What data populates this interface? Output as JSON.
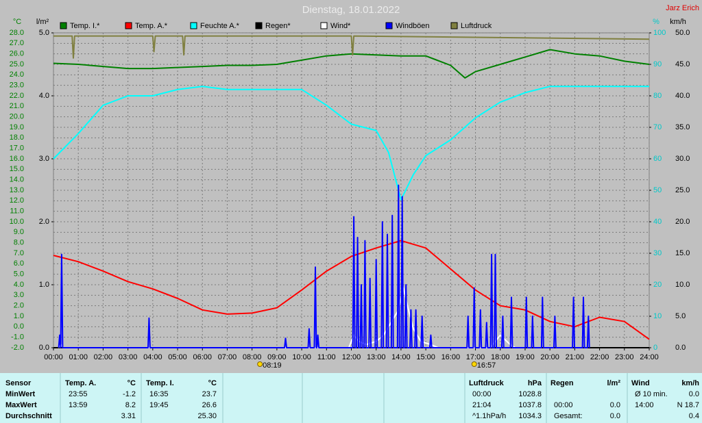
{
  "chart_data": {
    "type": "line",
    "title": "Dienstag, 18.01.2022",
    "author": "Jarz Erich",
    "grid": true,
    "legend": "top",
    "xlim": [
      0,
      24
    ],
    "xticks": [
      {
        "value": 0,
        "label": "00:00"
      },
      {
        "value": 1,
        "label": "01:00"
      },
      {
        "value": 2,
        "label": "02:00"
      },
      {
        "value": 3,
        "label": "03:00"
      },
      {
        "value": 4,
        "label": "04:00"
      },
      {
        "value": 5,
        "label": "05:00"
      },
      {
        "value": 6,
        "label": "06:00"
      },
      {
        "value": 7,
        "label": "07:00"
      },
      {
        "value": 8,
        "label": "08:00"
      },
      {
        "value": 9,
        "label": "09:00"
      },
      {
        "value": 10,
        "label": "10:00"
      },
      {
        "value": 11,
        "label": "11:00"
      },
      {
        "value": 12,
        "label": "12:00"
      },
      {
        "value": 13,
        "label": "13:00"
      },
      {
        "value": 14,
        "label": "14:00"
      },
      {
        "value": 15,
        "label": "15:00"
      },
      {
        "value": 16,
        "label": "16:00"
      },
      {
        "value": 17,
        "label": "17:00"
      },
      {
        "value": 18,
        "label": "18:00"
      },
      {
        "value": 19,
        "label": "19:00"
      },
      {
        "value": 20,
        "label": "20:00"
      },
      {
        "value": 21,
        "label": "21:00"
      },
      {
        "value": 22,
        "label": "22:00"
      },
      {
        "value": 23,
        "label": "23:00"
      },
      {
        "value": 24,
        "label": "24:00"
      }
    ],
    "sun": [
      {
        "value": 8.317,
        "label": "08:19"
      },
      {
        "value": 16.95,
        "label": "16:57"
      }
    ],
    "axes": [
      {
        "label": "°C",
        "side": "left",
        "color": "#008000",
        "lim": [
          -2,
          28
        ],
        "ticks": [
          {
            "value": -2,
            "label": "-2.0"
          },
          {
            "value": -1,
            "label": "-1.0"
          },
          {
            "value": 0,
            "label": "0.0"
          },
          {
            "value": 1,
            "label": "1.0"
          },
          {
            "value": 2,
            "label": "2.0"
          },
          {
            "value": 3,
            "label": "3.0"
          },
          {
            "value": 4,
            "label": "4.0"
          },
          {
            "value": 5,
            "label": "5.0"
          },
          {
            "value": 6,
            "label": "6.0"
          },
          {
            "value": 7,
            "label": "7.0"
          },
          {
            "value": 8,
            "label": "8.0"
          },
          {
            "value": 9,
            "label": "9.0"
          },
          {
            "value": 10,
            "label": "10.0"
          },
          {
            "value": 11,
            "label": "11.0"
          },
          {
            "value": 12,
            "label": "12.0"
          },
          {
            "value": 13,
            "label": "13.0"
          },
          {
            "value": 14,
            "label": "14.0"
          },
          {
            "value": 15,
            "label": "15.0"
          },
          {
            "value": 16,
            "label": "16.0"
          },
          {
            "value": 17,
            "label": "17.0"
          },
          {
            "value": 18,
            "label": "18.0"
          },
          {
            "value": 19,
            "label": "19.0"
          },
          {
            "value": 20,
            "label": "20.0"
          },
          {
            "value": 21,
            "label": "21.0"
          },
          {
            "value": 22,
            "label": "22.0"
          },
          {
            "value": 23,
            "label": "23.0"
          },
          {
            "value": 24,
            "label": "24.0"
          },
          {
            "value": 25,
            "label": "25.0"
          },
          {
            "value": 26,
            "label": "26.0"
          },
          {
            "value": 27,
            "label": "27.0"
          },
          {
            "value": 28,
            "label": "28.0"
          }
        ]
      },
      {
        "label": "l/m²",
        "side": "left",
        "color": "#000000",
        "lim": [
          0,
          5
        ],
        "ticks": [
          {
            "value": 0,
            "label": "0.0"
          },
          {
            "value": 1,
            "label": "1.0"
          },
          {
            "value": 2,
            "label": "2.0"
          },
          {
            "value": 3,
            "label": "3.0"
          },
          {
            "value": 4,
            "label": "4.0"
          },
          {
            "value": 5,
            "label": "5.0"
          }
        ]
      },
      {
        "label": "%",
        "side": "right",
        "color": "#00c8c8",
        "lim": [
          0,
          100
        ],
        "ticks": [
          0,
          10,
          20,
          30,
          40,
          50,
          60,
          70,
          80,
          90,
          100
        ]
      },
      {
        "label": "km/h",
        "side": "right",
        "color": "#000000",
        "lim": [
          0,
          50
        ],
        "ticks": [
          {
            "value": 0,
            "label": "0.0"
          },
          {
            "value": 5,
            "label": "5.0"
          },
          {
            "value": 10,
            "label": "10.0"
          },
          {
            "value": 15,
            "label": "15.0"
          },
          {
            "value": 20,
            "label": "20.0"
          },
          {
            "value": 25,
            "label": "25.0"
          },
          {
            "value": 30,
            "label": "30.0"
          },
          {
            "value": 35,
            "label": "35.0"
          },
          {
            "value": 40,
            "label": "40.0"
          },
          {
            "value": 45,
            "label": "45.0"
          },
          {
            "value": 50,
            "label": "50.0"
          }
        ]
      }
    ],
    "series": [
      {
        "name": "Temp. I.*",
        "color": "#008000",
        "axis": 0,
        "x": [
          0,
          1,
          2,
          3,
          4,
          5,
          6,
          7,
          8,
          9,
          10,
          11,
          12,
          13,
          14,
          15,
          16,
          16.58,
          17,
          18,
          19,
          20,
          21,
          22,
          23,
          24
        ],
        "values": [
          25.1,
          25.0,
          24.8,
          24.6,
          24.6,
          24.7,
          24.8,
          24.9,
          24.9,
          25.0,
          25.4,
          25.8,
          26.0,
          25.9,
          25.8,
          25.8,
          24.9,
          23.7,
          24.3,
          25.0,
          25.7,
          26.4,
          26.0,
          25.8,
          25.3,
          25.0
        ]
      },
      {
        "name": "Temp. A.*",
        "color": "#ff0000",
        "axis": 0,
        "x": [
          0,
          1,
          2,
          3,
          4,
          5,
          6,
          7,
          8,
          9,
          10,
          11,
          12,
          13,
          14,
          15,
          16,
          17,
          18,
          19,
          20,
          21,
          22,
          23,
          24
        ],
        "values": [
          6.8,
          6.2,
          5.3,
          4.3,
          3.6,
          2.7,
          1.6,
          1.2,
          1.3,
          1.8,
          3.5,
          5.3,
          6.7,
          7.5,
          8.2,
          7.5,
          5.5,
          3.5,
          2.0,
          1.6,
          0.5,
          0.0,
          0.9,
          0.5,
          -1.2
        ]
      },
      {
        "name": "Feuchte A.*",
        "color": "#00ffff",
        "axis": 2,
        "x": [
          0,
          1,
          2,
          3,
          4,
          5,
          6,
          7,
          8,
          9,
          10,
          11,
          12,
          13,
          13.5,
          14,
          14.5,
          15,
          16,
          17,
          18,
          19,
          20,
          21,
          22,
          23,
          24
        ],
        "values": [
          60,
          68,
          77,
          80,
          80,
          82,
          83,
          82,
          82,
          82,
          82,
          77,
          71,
          69,
          62,
          47,
          55,
          61,
          66,
          73,
          78,
          81,
          83,
          83,
          83,
          83,
          83
        ]
      },
      {
        "name": "Regen*",
        "color": "#000000",
        "axis": 1,
        "x": [
          0,
          24
        ],
        "values": [
          0,
          0
        ]
      },
      {
        "name": "Wind*",
        "color": "#ffffff",
        "axis": 3,
        "x": [
          0.2,
          0.3,
          0.4,
          11.9,
          12.1,
          12.3,
          12.6,
          13.0,
          13.3,
          13.6,
          13.9,
          14.1,
          14.3,
          14.5,
          14.8,
          15.2,
          15.5,
          17.6,
          17.8,
          18.0,
          18.4,
          18.6
        ],
        "values": [
          0,
          0.5,
          0,
          0,
          2,
          1,
          0.5,
          1,
          2,
          4,
          6,
          9.5,
          6,
          3,
          1,
          0.5,
          0,
          0,
          1,
          2,
          0.5,
          0
        ]
      },
      {
        "name": "Windböen",
        "color": "#0000ff",
        "axis": 3,
        "x": [
          0.21,
          0.25,
          0.29,
          0.29,
          0.33,
          0.37,
          3.81,
          3.85,
          3.89,
          9.31,
          9.35,
          9.39,
          10.26,
          10.3,
          10.34,
          10.51,
          10.55,
          10.59,
          10.61,
          10.65,
          10.69,
          12.06,
          12.1,
          12.14,
          12.21,
          12.25,
          12.29,
          12.36,
          12.4,
          12.44,
          12.51,
          12.55,
          12.59,
          12.71,
          12.75,
          12.79,
          12.96,
          13.0,
          13.04,
          13.21,
          13.25,
          13.29,
          13.41,
          13.45,
          13.49,
          13.61,
          13.65,
          13.69,
          13.86,
          13.9,
          13.94,
          14.01,
          14.05,
          14.09,
          14.16,
          14.2,
          14.24,
          14.36,
          14.4,
          14.44,
          14.56,
          14.6,
          14.64,
          14.81,
          14.85,
          14.89,
          15.16,
          15.2,
          15.24,
          16.66,
          16.7,
          16.74,
          16.91,
          16.95,
          16.99,
          17.16,
          17.2,
          17.24,
          17.41,
          17.45,
          17.49,
          17.61,
          17.65,
          17.69,
          17.76,
          17.8,
          17.84,
          18.06,
          18.1,
          18.14,
          18.41,
          18.45,
          18.49,
          19.01,
          19.05,
          19.09,
          19.26,
          19.3,
          19.34,
          19.66,
          19.7,
          19.74,
          20.16,
          20.2,
          20.24,
          20.91,
          20.95,
          20.99,
          21.31,
          21.35,
          21.39,
          21.51,
          21.55,
          21.59
        ],
        "values": [
          0,
          2,
          0,
          0,
          14.8,
          0,
          0,
          4.7,
          0,
          0,
          1.5,
          0,
          0,
          3,
          0,
          0,
          12.8,
          0,
          0,
          2,
          0,
          0,
          20.8,
          0,
          0,
          17.5,
          0,
          0,
          10,
          0,
          0,
          17,
          0,
          0,
          11,
          0,
          0,
          14,
          0,
          0,
          20,
          0,
          0,
          18,
          0,
          0,
          21,
          0,
          0,
          25.8,
          0,
          0,
          24,
          0,
          0,
          10,
          0,
          0,
          6,
          0,
          0,
          6,
          0,
          0,
          5,
          0,
          0,
          2,
          0,
          0,
          5,
          0,
          0,
          9.5,
          0,
          0,
          6,
          0,
          0,
          4,
          0,
          0,
          14.8,
          0,
          0,
          14.8,
          0,
          0,
          5,
          0,
          0,
          8,
          0,
          0,
          8,
          0,
          0,
          5,
          0,
          0,
          8,
          0,
          0,
          5,
          0,
          0,
          8,
          0,
          0,
          8,
          0,
          0,
          5,
          0
        ]
      },
      {
        "name": "Luftdruck",
        "color": "#808040",
        "axis": 2,
        "x": [
          0,
          0.75,
          0.8,
          0.85,
          4.0,
          4.05,
          4.1,
          5.2,
          5.25,
          5.3,
          12.0,
          12.05,
          12.1,
          24
        ],
        "values": [
          99,
          99,
          92,
          99,
          99,
          94,
          99,
          99,
          93,
          99,
          99,
          93,
          99,
          98
        ]
      }
    ]
  },
  "table": {
    "row_header": "Sensor",
    "row_labels": [
      "MinWert",
      "MaxWert",
      "Durchschnitt"
    ],
    "columns": [
      {
        "header": "Temp. A.",
        "unit": "°C",
        "cells": [
          {
            "time": "23:55",
            "value": "-1.2"
          },
          {
            "time": "13:59",
            "value": "8.2"
          },
          {
            "value": "3.31"
          }
        ]
      },
      {
        "header": "Temp. I.",
        "unit": "°C",
        "cells": [
          {
            "time": "16:35",
            "value": "23.7"
          },
          {
            "time": "19:45",
            "value": "26.6"
          },
          {
            "value": "25.30"
          }
        ]
      },
      {
        "header": "Luftdruck",
        "unit": "hPa",
        "cells": [
          {
            "time": "00:00",
            "value": "1028.8"
          },
          {
            "time": "21:04",
            "value": "1037.8"
          },
          {
            "time": "^1.1hPa/h",
            "value": "1034.3"
          }
        ]
      },
      {
        "header": "Regen",
        "unit": "l/m²",
        "cells": [
          null,
          {
            "time": "00:00",
            "value": "0.0"
          },
          {
            "time": "Gesamt:",
            "value": "0.0"
          }
        ]
      },
      {
        "header": "Wind",
        "unit": "km/h",
        "cells": [
          {
            "time": "Ø 10 min.",
            "value": "0.0"
          },
          {
            "time": "14:00",
            "value": "N 18.7"
          },
          {
            "value": "0.4"
          }
        ]
      }
    ]
  }
}
